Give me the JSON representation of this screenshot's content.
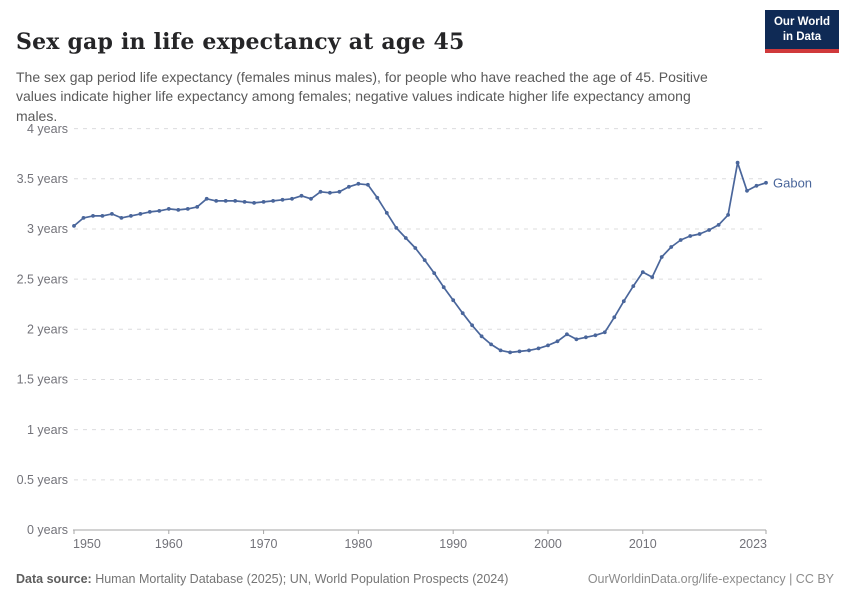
{
  "header": {
    "title": "Sex gap in life expectancy at age 45",
    "subtitle": "The sex gap period life expectancy (females minus males), for people who have reached the age of 45. Positive values indicate higher life expectancy among females; negative values indicate higher life expectancy among males.",
    "logo_line1": "Our World",
    "logo_line2": "in Data"
  },
  "colors": {
    "series_blue": "#4a669b",
    "grid": "#dcdcde",
    "axis": "#a5a5a5",
    "tick_text": "#73737a",
    "logo_bg": "#0f2a55",
    "logo_stripe": "#d0393b"
  },
  "chart_data": {
    "type": "line",
    "title": "Sex gap in life expectancy at age 45",
    "xlabel": "",
    "ylabel": "",
    "xlim": [
      1950,
      2023
    ],
    "ylim": [
      0,
      4
    ],
    "grid": "horizontal-dashed",
    "legend_position": "end-of-line-label",
    "end_label": "Gabon",
    "y_ticks": [
      {
        "value": 0,
        "label": "0 years"
      },
      {
        "value": 0.5,
        "label": "0.5 years"
      },
      {
        "value": 1,
        "label": "1 years"
      },
      {
        "value": 1.5,
        "label": "1.5 years"
      },
      {
        "value": 2,
        "label": "2 years"
      },
      {
        "value": 2.5,
        "label": "2.5 years"
      },
      {
        "value": 3,
        "label": "3 years"
      },
      {
        "value": 3.5,
        "label": "3.5 years"
      },
      {
        "value": 4,
        "label": "4 years"
      }
    ],
    "x_ticks": [
      {
        "value": 1950,
        "label": "1950"
      },
      {
        "value": 1960,
        "label": "1960"
      },
      {
        "value": 1970,
        "label": "1970"
      },
      {
        "value": 1980,
        "label": "1980"
      },
      {
        "value": 1990,
        "label": "1990"
      },
      {
        "value": 2000,
        "label": "2000"
      },
      {
        "value": 2010,
        "label": "2010"
      },
      {
        "value": 2023,
        "label": "2023"
      }
    ],
    "series": [
      {
        "name": "Gabon",
        "color": "#4a669b",
        "x": [
          1950,
          1951,
          1952,
          1953,
          1954,
          1955,
          1956,
          1957,
          1958,
          1959,
          1960,
          1961,
          1962,
          1963,
          1964,
          1965,
          1966,
          1967,
          1968,
          1969,
          1970,
          1971,
          1972,
          1973,
          1974,
          1975,
          1976,
          1977,
          1978,
          1979,
          1980,
          1981,
          1982,
          1983,
          1984,
          1985,
          1986,
          1987,
          1988,
          1989,
          1990,
          1991,
          1992,
          1993,
          1994,
          1995,
          1996,
          1997,
          1998,
          1999,
          2000,
          2001,
          2002,
          2003,
          2004,
          2005,
          2006,
          2007,
          2008,
          2009,
          2010,
          2011,
          2012,
          2013,
          2014,
          2015,
          2016,
          2017,
          2018,
          2019,
          2020,
          2021,
          2022,
          2023
        ],
        "values": [
          3.03,
          3.11,
          3.13,
          3.13,
          3.15,
          3.11,
          3.13,
          3.15,
          3.17,
          3.18,
          3.2,
          3.19,
          3.2,
          3.22,
          3.3,
          3.28,
          3.28,
          3.28,
          3.27,
          3.26,
          3.27,
          3.28,
          3.29,
          3.3,
          3.33,
          3.3,
          3.37,
          3.36,
          3.37,
          3.42,
          3.45,
          3.44,
          3.31,
          3.16,
          3.01,
          2.91,
          2.81,
          2.69,
          2.56,
          2.42,
          2.29,
          2.16,
          2.04,
          1.93,
          1.85,
          1.79,
          1.77,
          1.78,
          1.79,
          1.81,
          1.84,
          1.88,
          1.95,
          1.9,
          1.92,
          1.94,
          1.97,
          2.12,
          2.28,
          2.43,
          2.57,
          2.52,
          2.72,
          2.82,
          2.89,
          2.93,
          2.95,
          2.99,
          3.04,
          3.14,
          3.66,
          3.38,
          3.43,
          3.46
        ]
      }
    ]
  },
  "footer": {
    "datasource_label": "Data source:",
    "datasource_text": " Human Mortality Database (2025); UN, World Population Prospects (2024)",
    "link_text": "OurWorldinData.org/life-expectancy | CC BY"
  }
}
